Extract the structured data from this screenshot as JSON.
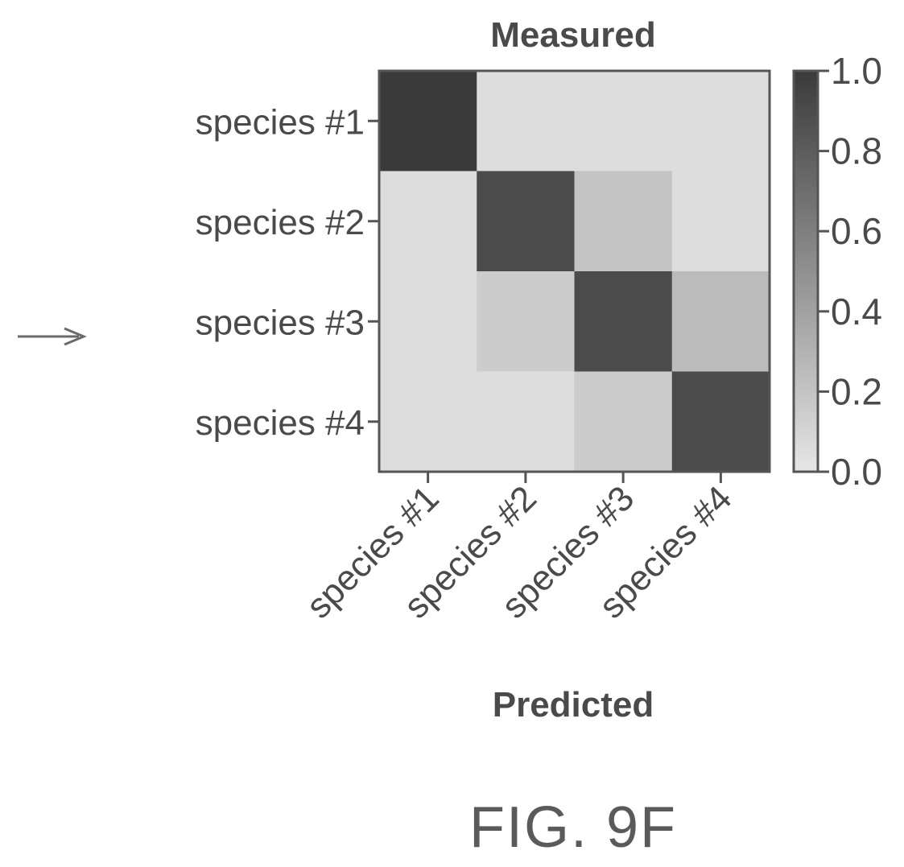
{
  "figure_label": "FIG. 9F",
  "arrow_icon": "right-arrow-icon",
  "chart_data": {
    "type": "heatmap",
    "title": "Measured",
    "xlabel": "Predicted",
    "ylabel": "",
    "x_categories": [
      "species #1",
      "species #2",
      "species #3",
      "species #4"
    ],
    "y_categories": [
      "species #1",
      "species #2",
      "species #3",
      "species #4"
    ],
    "values": [
      [
        1.0,
        0.05,
        0.05,
        0.05
      ],
      [
        0.05,
        0.9,
        0.2,
        0.05
      ],
      [
        0.05,
        0.15,
        0.9,
        0.25
      ],
      [
        0.05,
        0.05,
        0.15,
        0.9
      ]
    ],
    "colorbar": {
      "range": [
        0.0,
        1.0
      ],
      "ticks": [
        "0.0",
        "0.2",
        "0.4",
        "0.6",
        "0.8",
        "1.0"
      ],
      "colors": {
        "low": "#e6e6e6",
        "high": "#3a3a3a"
      }
    }
  }
}
